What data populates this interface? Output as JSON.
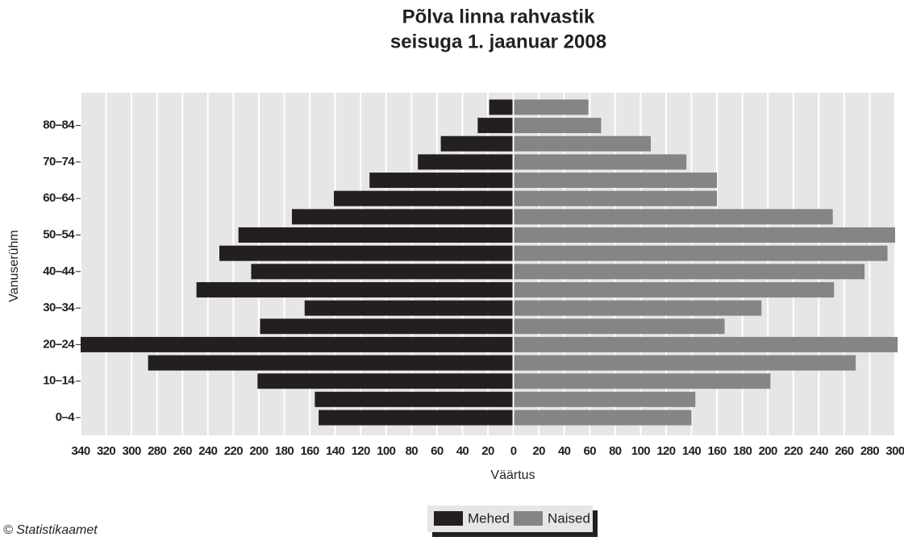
{
  "chart_data": {
    "type": "pyramid",
    "title": "Põlva linna rahvastik",
    "subtitle": "seisuga 1. jaanuar 2008",
    "x_label": "Väärtus",
    "y_label": "Vanuserühm",
    "source": "© Statistikaamet",
    "categories": [
      "0–4",
      null,
      "10–14",
      null,
      "20–24",
      null,
      "30–34",
      null,
      "40–44",
      null,
      "50–54",
      null,
      "60–64",
      null,
      "70–74",
      null,
      "80–84",
      null
    ],
    "series": [
      {
        "name": "Mehed",
        "color": "#231f20",
        "values": [
          -153,
          -156,
          -201,
          -287,
          -340,
          -199,
          -164,
          -249,
          -206,
          -231,
          -216,
          -174,
          -141,
          -113,
          -75,
          -57,
          -28,
          -19
        ]
      },
      {
        "name": "Naised",
        "color": "#858585",
        "values": [
          140,
          143,
          202,
          269,
          302,
          166,
          195,
          252,
          276,
          294,
          300,
          251,
          160,
          160,
          136,
          108,
          69,
          59
        ]
      }
    ],
    "xlim": [
      -340,
      300
    ],
    "xticks": [
      {
        "value": -340,
        "label": "340"
      },
      {
        "value": -320,
        "label": "320"
      },
      {
        "value": -300,
        "label": "300"
      },
      {
        "value": -280,
        "label": "280"
      },
      {
        "value": -260,
        "label": "260"
      },
      {
        "value": -240,
        "label": "240"
      },
      {
        "value": -220,
        "label": "220"
      },
      {
        "value": -200,
        "label": "200"
      },
      {
        "value": -180,
        "label": "180"
      },
      {
        "value": -160,
        "label": "160"
      },
      {
        "value": -140,
        "label": "140"
      },
      {
        "value": -120,
        "label": "120"
      },
      {
        "value": -100,
        "label": "100"
      },
      {
        "value": -80,
        "label": "80"
      },
      {
        "value": -60,
        "label": "60"
      },
      {
        "value": -40,
        "label": "40"
      },
      {
        "value": -20,
        "label": "20"
      },
      0,
      20,
      40,
      60,
      80,
      100,
      120,
      140,
      160,
      180,
      200,
      220,
      240,
      260,
      280,
      300
    ],
    "grid": true,
    "legend": "bottom"
  }
}
